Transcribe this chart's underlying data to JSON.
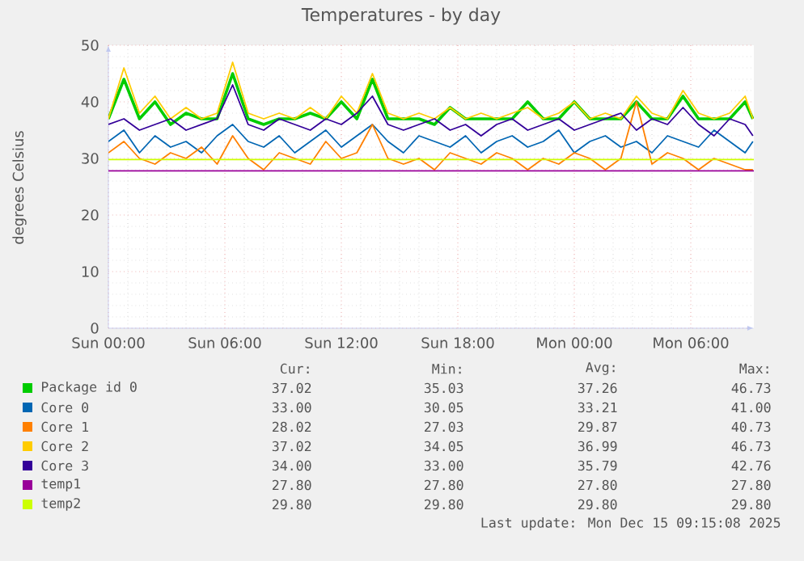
{
  "chart_data": {
    "type": "line",
    "title": "Temperatures - by day",
    "ylabel": "degrees Celsius",
    "x": [
      "2025-12-14T00:00",
      "2025-12-14T00:48",
      "2025-12-14T01:36",
      "2025-12-14T02:24",
      "2025-12-14T03:12",
      "2025-12-14T04:00",
      "2025-12-14T04:48",
      "2025-12-14T05:36",
      "2025-12-14T06:24",
      "2025-12-14T07:12",
      "2025-12-14T08:00",
      "2025-12-14T08:48",
      "2025-12-14T09:36",
      "2025-12-14T10:24",
      "2025-12-14T11:12",
      "2025-12-14T12:00",
      "2025-12-14T12:48",
      "2025-12-14T13:36",
      "2025-12-14T14:24",
      "2025-12-14T15:12",
      "2025-12-14T16:00",
      "2025-12-14T16:48",
      "2025-12-14T17:36",
      "2025-12-14T18:24",
      "2025-12-14T19:12",
      "2025-12-14T20:00",
      "2025-12-14T20:48",
      "2025-12-14T21:36",
      "2025-12-14T22:24",
      "2025-12-14T23:12",
      "2025-12-15T00:00",
      "2025-12-15T00:48",
      "2025-12-15T01:36",
      "2025-12-15T02:24",
      "2025-12-15T03:12",
      "2025-12-15T04:00",
      "2025-12-15T04:48",
      "2025-12-15T05:36",
      "2025-12-15T06:24",
      "2025-12-15T07:12",
      "2025-12-15T08:00",
      "2025-12-15T08:48",
      "2025-12-15T09:12"
    ],
    "xlim": [
      "2025-12-14T00:00",
      "2025-12-15T09:15"
    ],
    "xticks": [
      {
        "value": "2025-12-14T00:00",
        "label": "Sun 00:00"
      },
      {
        "value": "2025-12-14T06:00",
        "label": "Sun 06:00"
      },
      {
        "value": "2025-12-14T12:00",
        "label": "Sun 12:00"
      },
      {
        "value": "2025-12-14T18:00",
        "label": "Sun 18:00"
      },
      {
        "value": "2025-12-15T00:00",
        "label": "Mon 00:00"
      },
      {
        "value": "2025-12-15T06:00",
        "label": "Mon 06:00"
      }
    ],
    "ylim": [
      0,
      50
    ],
    "yticks": [
      0,
      10,
      20,
      30,
      40,
      50
    ],
    "grid": true,
    "legend": "bottom",
    "series": [
      {
        "name": "Package id 0",
        "color": "#00cc00",
        "values": [
          37,
          44,
          37,
          40,
          36,
          38,
          37,
          37,
          45,
          37,
          36,
          37,
          37,
          38,
          37,
          40,
          37,
          44,
          37,
          37,
          37,
          36,
          39,
          37,
          37,
          37,
          37,
          40,
          37,
          37,
          40,
          37,
          37,
          37,
          40,
          37,
          37,
          41,
          37,
          37,
          37,
          40,
          37
        ]
      },
      {
        "name": "Core 0",
        "color": "#0066b3",
        "values": [
          33,
          35,
          31,
          34,
          32,
          33,
          31,
          34,
          36,
          33,
          32,
          34,
          31,
          33,
          35,
          32,
          34,
          36,
          33,
          31,
          34,
          33,
          32,
          34,
          31,
          33,
          34,
          32,
          33,
          35,
          31,
          33,
          34,
          32,
          33,
          31,
          34,
          33,
          32,
          35,
          33,
          31,
          33
        ]
      },
      {
        "name": "Core 1",
        "color": "#ff8000",
        "values": [
          31,
          33,
          30,
          29,
          31,
          30,
          32,
          29,
          34,
          30,
          28,
          31,
          30,
          29,
          33,
          30,
          31,
          36,
          30,
          29,
          30,
          28,
          31,
          30,
          29,
          31,
          30,
          28,
          30,
          29,
          31,
          30,
          28,
          30,
          40,
          29,
          31,
          30,
          28,
          30,
          29,
          28,
          28
        ]
      },
      {
        "name": "Core 2",
        "color": "#ffcc00",
        "values": [
          37,
          46,
          38,
          41,
          37,
          39,
          37,
          38,
          47,
          38,
          37,
          38,
          37,
          39,
          37,
          41,
          38,
          45,
          38,
          37,
          38,
          37,
          39,
          37,
          38,
          37,
          38,
          39,
          37,
          38,
          40,
          37,
          38,
          37,
          41,
          38,
          37,
          42,
          38,
          37,
          38,
          41,
          37
        ]
      },
      {
        "name": "Core 3",
        "color": "#330099",
        "values": [
          36,
          37,
          35,
          36,
          37,
          35,
          36,
          37,
          43,
          36,
          35,
          37,
          36,
          35,
          37,
          36,
          38,
          41,
          36,
          35,
          36,
          37,
          35,
          36,
          34,
          36,
          37,
          35,
          36,
          37,
          35,
          36,
          37,
          38,
          35,
          37,
          36,
          39,
          36,
          34,
          37,
          36,
          34
        ]
      },
      {
        "name": "temp1",
        "color": "#990099",
        "x": [
          "2025-12-14T00:00",
          "2025-12-15T09:15"
        ],
        "values": [
          27.8,
          27.8
        ]
      },
      {
        "name": "temp2",
        "color": "#ccff00",
        "x": [
          "2025-12-14T00:00",
          "2025-12-15T09:15"
        ],
        "values": [
          29.8,
          29.8
        ]
      }
    ],
    "annotations": [
      "Cur:",
      "Min:",
      "Avg:",
      "Max:",
      "37.02",
      "35.03",
      "37.26",
      "46.73",
      "33.00",
      "30.05",
      "33.21",
      "41.00",
      "28.02",
      "27.03",
      "29.87",
      "40.73",
      "37.02",
      "34.05",
      "36.99",
      "46.73",
      "34.00",
      "33.00",
      "35.79",
      "42.76",
      "27.80",
      "27.80",
      "27.80",
      "27.80",
      "29.80",
      "29.80",
      "29.80",
      "29.80",
      "Last update: Mon Dec 15 09:15:08 2025"
    ]
  }
}
